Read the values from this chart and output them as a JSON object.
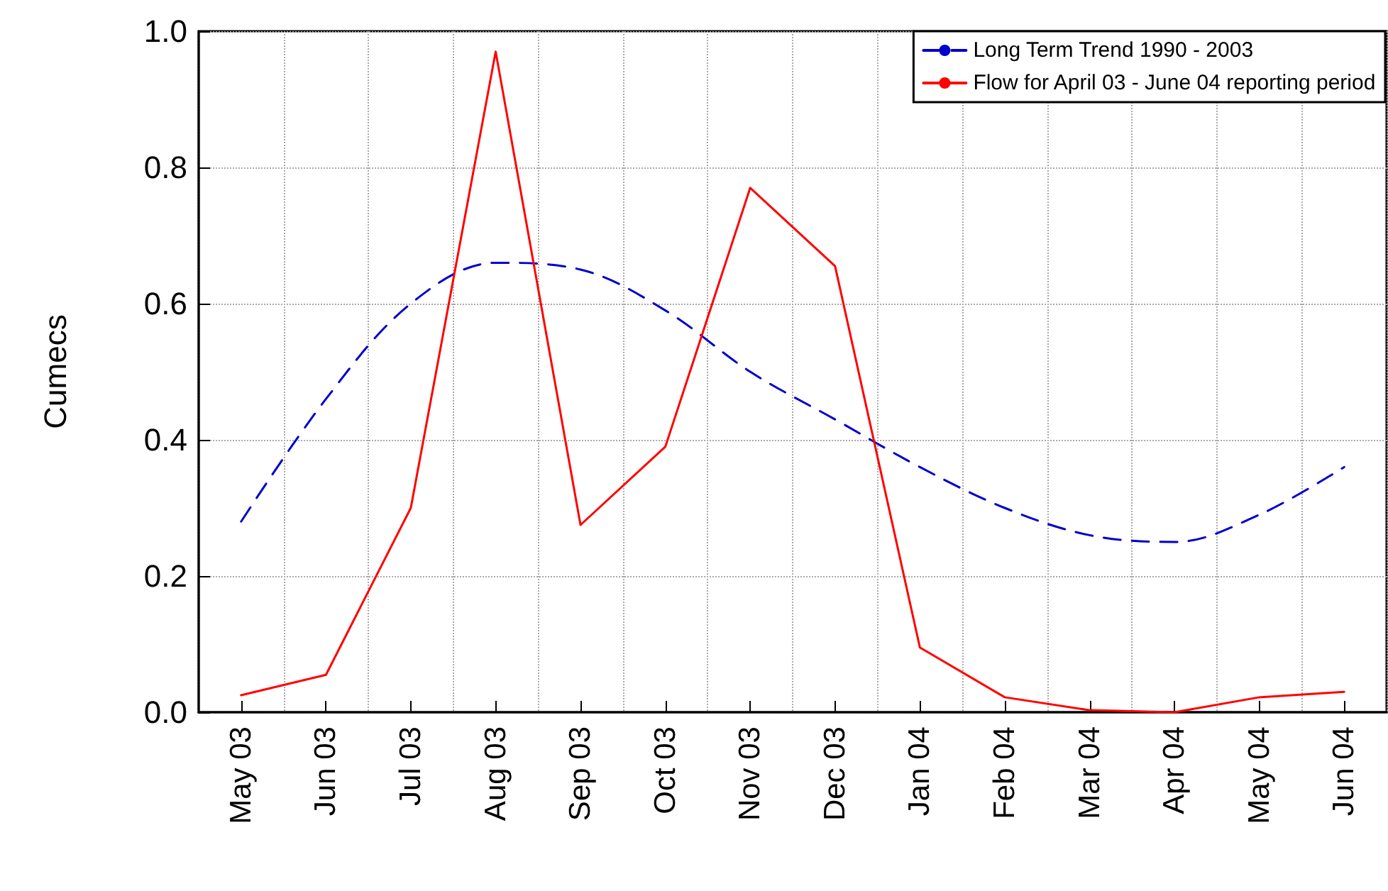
{
  "chart_data": {
    "type": "line",
    "ylabel": "Cumecs",
    "categories": [
      "May 03",
      "Jun 03",
      "Jul 03",
      "Aug 03",
      "Sep 03",
      "Oct 03",
      "Nov 03",
      "Dec 03",
      "Jan 04",
      "Feb 04",
      "Mar 04",
      "Apr 04",
      "May 04",
      "Jun 04"
    ],
    "series": [
      {
        "name": "Long Term Trend 1990 - 2003",
        "color": "#0000cc",
        "line_style": "dashed",
        "values": [
          0.28,
          0.46,
          0.6,
          0.66,
          0.65,
          0.59,
          0.5,
          0.43,
          0.36,
          0.3,
          0.26,
          0.25,
          0.29,
          0.36
        ]
      },
      {
        "name": "Flow for April 03 - June 04 reporting period",
        "color": "#ff0000",
        "line_style": "solid",
        "values": [
          0.025,
          0.055,
          0.3,
          0.97,
          0.275,
          0.39,
          0.77,
          0.655,
          0.095,
          0.022,
          0.003,
          0.0,
          0.022,
          0.03
        ]
      }
    ],
    "ylim": [
      0,
      1
    ],
    "yticks": [
      {
        "value": 0,
        "label": "0.0"
      },
      {
        "value": 0.2,
        "label": "0.2"
      },
      {
        "value": 0.4,
        "label": "0.4"
      },
      {
        "value": 0.6,
        "label": "0.6"
      },
      {
        "value": 0.8,
        "label": "0.8"
      },
      {
        "value": 1,
        "label": "1.0"
      }
    ],
    "grid": true,
    "legend": "top right",
    "marker": "none"
  }
}
